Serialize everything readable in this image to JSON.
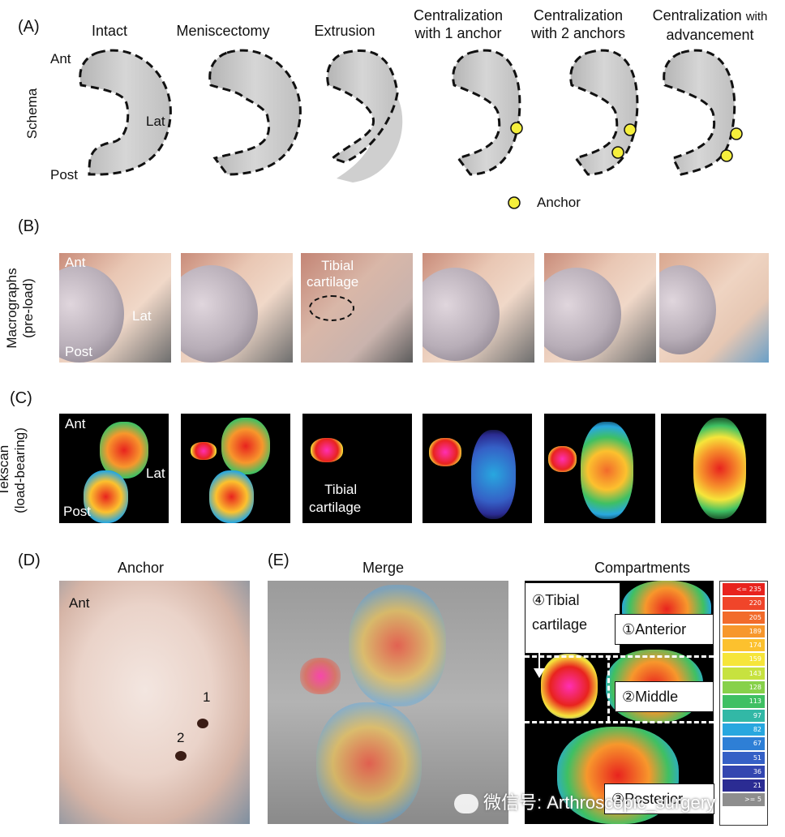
{
  "panels": {
    "A": "(A)",
    "B": "(B)",
    "C": "(C)",
    "D": "(D)",
    "E": "(E)"
  },
  "columns": [
    {
      "line1": "Intact",
      "line2": ""
    },
    {
      "line1": "Meniscectomy",
      "line2": ""
    },
    {
      "line1": "Extrusion",
      "line2": ""
    },
    {
      "line1": "Centralization",
      "line2": "with 1 anchor"
    },
    {
      "line1": "Centralization",
      "line2": "with 2 anchors"
    },
    {
      "line1": "Centralization",
      "line1_small": "with",
      "line2": "advancement"
    }
  ],
  "row_labels": {
    "schema": "Schema",
    "macro_1": "Macrographs",
    "macro_2": "(pre-load)",
    "tek_1": "Tekscan",
    "tek_2": "(load-bearing)"
  },
  "schema_annotations": {
    "ant": "Ant",
    "lat": "Lat",
    "post": "Post",
    "anchor_legend": "Anchor"
  },
  "macro_annotations": {
    "ant": "Ant",
    "lat": "Lat",
    "post": "Post",
    "tibial_1": "Tibial",
    "tibial_2": "cartilage"
  },
  "tek_annotations": {
    "ant": "Ant",
    "lat": "Lat",
    "post": "Post",
    "tibial_1": "Tibial",
    "tibial_2": "cartilage"
  },
  "panel_d": {
    "title": "Anchor",
    "ant": "Ant",
    "n1": "1",
    "n2": "2"
  },
  "panel_e": {
    "merge_title": "Merge",
    "compartments_title": "Compartments",
    "tibial_1": "④Tibial",
    "tibial_2": "cartilage",
    "anterior": "①Anterior",
    "middle": "②Middle",
    "posterior": "③Posterior"
  },
  "scale": [
    "<= 235",
    "220",
    "205",
    "189",
    "174",
    "159",
    "143",
    "128",
    "113",
    "97",
    "82",
    "67",
    "51",
    "36",
    "21",
    ">= 5"
  ],
  "scale_colors": [
    "#e8231e",
    "#f0452a",
    "#f26b2b",
    "#f7972c",
    "#fcc12e",
    "#f6e53a",
    "#c7e23f",
    "#87d14a",
    "#3fc063",
    "#32b8a6",
    "#28a7df",
    "#2e7fd6",
    "#3560c6",
    "#3346b0",
    "#2b2c93",
    "#8e8e8e"
  ],
  "watermark": "微信号: Arthroscopic_surgery",
  "colors": {
    "anchor": "#f5ef3c",
    "schema_fill": "#c8c8c8",
    "heat_bg": "#000000"
  }
}
